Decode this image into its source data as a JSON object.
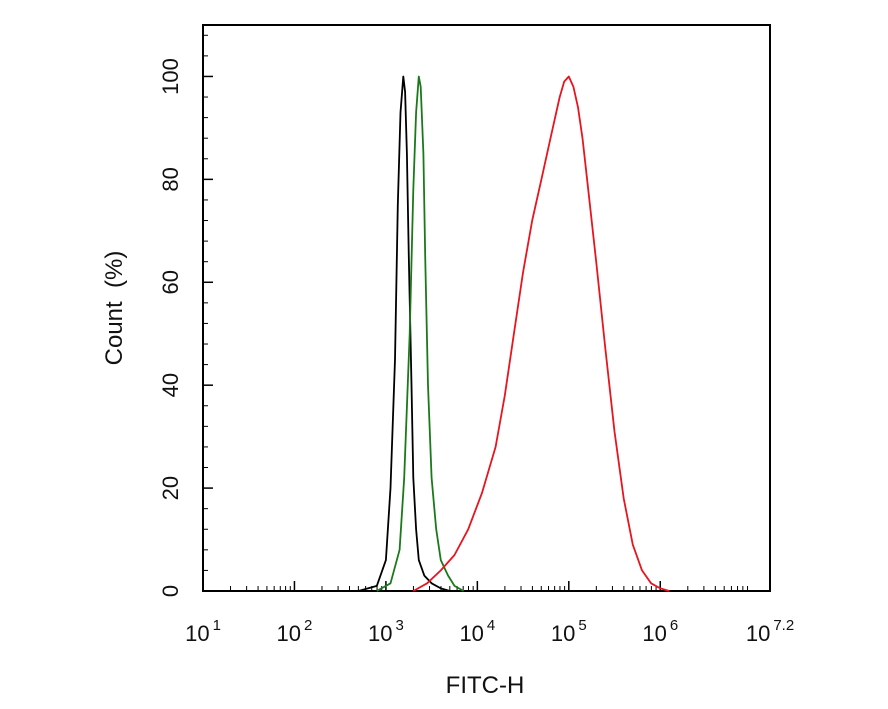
{
  "chart_data": {
    "type": "line",
    "subtype": "flow-cytometry-histogram",
    "title": "",
    "xlabel": "FITC-H",
    "ylabel": "Count  (%)",
    "xscale": "log10",
    "xlim_log10": [
      1,
      7.2
    ],
    "ylim": [
      0,
      110
    ],
    "grid": false,
    "x_ticks": [
      {
        "value": 1,
        "base": "10",
        "exp": "1"
      },
      {
        "value": 2,
        "base": "10",
        "exp": "2"
      },
      {
        "value": 3,
        "base": "10",
        "exp": "3"
      },
      {
        "value": 4,
        "base": "10",
        "exp": "4"
      },
      {
        "value": 5,
        "base": "10",
        "exp": "5"
      },
      {
        "value": 6,
        "base": "10",
        "exp": "6"
      },
      {
        "value": 7.2,
        "base": "10",
        "exp": "7.2"
      }
    ],
    "y_ticks": [
      {
        "value": 0,
        "label": "0"
      },
      {
        "value": 20,
        "label": "20"
      },
      {
        "value": 40,
        "label": "40"
      },
      {
        "value": 60,
        "label": "60"
      },
      {
        "value": 80,
        "label": "80"
      },
      {
        "value": 100,
        "label": "100"
      }
    ],
    "series": [
      {
        "name": "black",
        "color": "#000000",
        "x_log10": [
          2.7,
          2.9,
          3.0,
          3.05,
          3.1,
          3.13,
          3.16,
          3.19,
          3.21,
          3.23,
          3.25,
          3.28,
          3.3,
          3.33,
          3.36,
          3.42,
          3.5,
          3.6,
          3.7
        ],
        "y": [
          0,
          1,
          6,
          20,
          45,
          75,
          93,
          100,
          97,
          85,
          65,
          40,
          22,
          12,
          6,
          3,
          1.5,
          0.5,
          0
        ]
      },
      {
        "name": "green",
        "color": "#1a7a1a",
        "x_log10": [
          2.9,
          3.05,
          3.15,
          3.2,
          3.26,
          3.3,
          3.33,
          3.36,
          3.38,
          3.41,
          3.43,
          3.46,
          3.5,
          3.55,
          3.6,
          3.68,
          3.75,
          3.85
        ],
        "y": [
          0,
          1.5,
          8,
          22,
          50,
          78,
          93,
          100,
          98,
          85,
          65,
          40,
          22,
          12,
          6,
          3,
          1,
          0
        ]
      },
      {
        "name": "red",
        "color": "#e8141e",
        "x_log10": [
          3.3,
          3.45,
          3.6,
          3.75,
          3.9,
          4.05,
          4.2,
          4.3,
          4.4,
          4.5,
          4.6,
          4.7,
          4.8,
          4.85,
          4.9,
          4.95,
          5.0,
          5.05,
          5.1,
          5.15,
          5.2,
          5.3,
          5.4,
          5.5,
          5.6,
          5.7,
          5.8,
          5.9,
          6.0,
          6.1
        ],
        "y": [
          0,
          1.5,
          4,
          7,
          12,
          19,
          28,
          38,
          50,
          62,
          72,
          80,
          88,
          92,
          96,
          99,
          100,
          98,
          94,
          88,
          80,
          64,
          47,
          31,
          18,
          9,
          4,
          1.5,
          0.5,
          0
        ]
      }
    ]
  }
}
